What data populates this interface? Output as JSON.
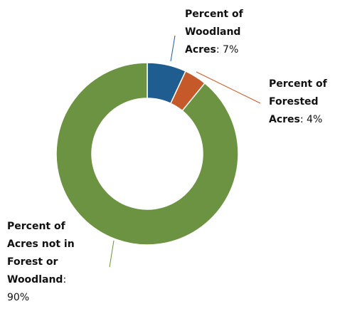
{
  "chart_data": {
    "type": "donut",
    "categories": [
      "Percent of Woodland Acres",
      "Percent of Forested Acres",
      "Percent of Acres not in Forest or Woodland"
    ],
    "values": [
      7,
      4,
      90
    ],
    "value_labels": [
      ": 7%",
      ": 4%",
      ": 90%"
    ],
    "colors": [
      "#1f5c8f",
      "#c6592a",
      "#6b9341"
    ]
  }
}
